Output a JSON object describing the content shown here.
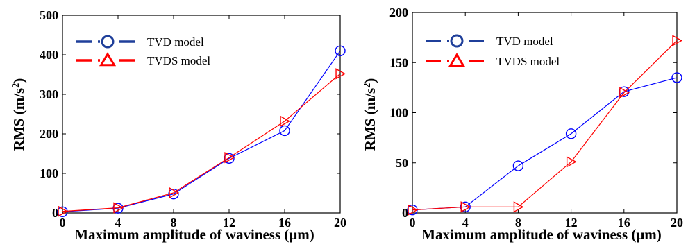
{
  "chart_data": [
    {
      "type": "line",
      "xlabel": "Maximum amplitude of waviness (μm)",
      "ylabel": "RMS (m/s²)",
      "ylabel_base": "RMS (m/s",
      "ylabel_sup": "2",
      "ylabel_tail": ")",
      "xlim": [
        0,
        20
      ],
      "ylim": [
        0,
        500
      ],
      "xticks": [
        "0",
        "4",
        "8",
        "12",
        "16",
        "20"
      ],
      "yticks": [
        "0",
        "100",
        "200",
        "300",
        "400",
        "500"
      ],
      "grid": false,
      "legend_position": "top-left",
      "x": [
        0,
        4,
        8,
        12,
        16,
        20
      ],
      "series": [
        {
          "name": "TVD model",
          "marker": "circle",
          "color": "#0000ff",
          "legend_color": "#1f3f9a",
          "values": [
            3,
            12,
            48,
            138,
            208,
            410
          ]
        },
        {
          "name": "TVDS model",
          "marker": "triangle",
          "color": "#ff0000",
          "legend_color": "#ff0000",
          "values": [
            4,
            13,
            51,
            140,
            232,
            352
          ]
        }
      ]
    },
    {
      "type": "line",
      "xlabel": "Maximum amplitude of waviness (μm)",
      "ylabel": "RMS (m/s²)",
      "ylabel_base": "RMS (m/s",
      "ylabel_sup": "2",
      "ylabel_tail": ")",
      "xlim": [
        0,
        20
      ],
      "ylim": [
        0,
        200
      ],
      "xticks": [
        "0",
        "4",
        "8",
        "12",
        "16",
        "20"
      ],
      "yticks": [
        "0",
        "50",
        "100",
        "150",
        "200"
      ],
      "grid": false,
      "legend_position": "top-left",
      "x": [
        0,
        4,
        8,
        12,
        16,
        20
      ],
      "series": [
        {
          "name": "TVD model",
          "marker": "circle",
          "color": "#0000ff",
          "legend_color": "#1f3f9a",
          "values": [
            3,
            6,
            47,
            79,
            121,
            135
          ]
        },
        {
          "name": "TVDS model",
          "marker": "triangle",
          "color": "#ff0000",
          "legend_color": "#ff0000",
          "values": [
            3,
            6,
            6,
            51,
            120,
            172
          ]
        }
      ]
    }
  ]
}
